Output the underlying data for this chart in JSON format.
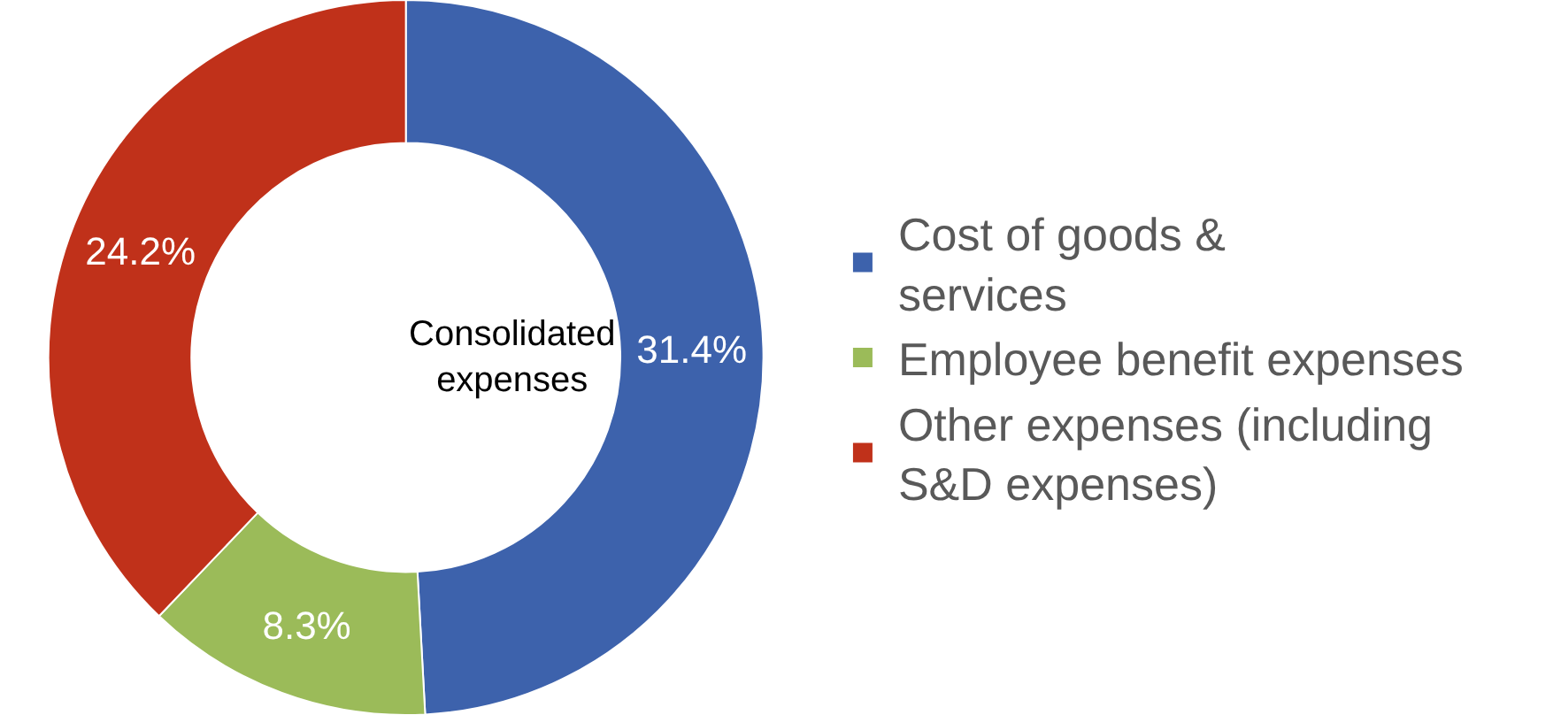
{
  "chart_data": {
    "type": "donut",
    "categories": [
      "Cost of goods & services",
      "Employee benefit expenses",
      "Other expenses (including S&D expenses)"
    ],
    "values": [
      31.4,
      8.3,
      24.2
    ],
    "value_labels": [
      "31.4%",
      "8.3%",
      "24.2%"
    ],
    "colors": [
      "#3d62ac",
      "#9bbb59",
      "#c0311a"
    ],
    "annotations": [
      "Consolidated expenses"
    ],
    "legend": "right"
  }
}
